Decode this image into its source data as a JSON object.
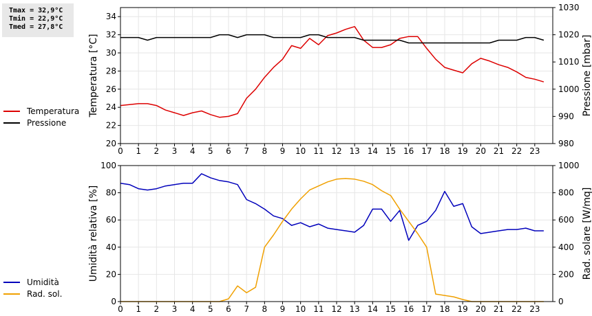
{
  "stats": {
    "tmax": "Tmax = 32,9°C",
    "tmin": "Tmin = 22,9°C",
    "tmed": "Tmed = 27,8°C"
  },
  "colors": {
    "temperature": "#dd0000",
    "pressure": "#000000",
    "humidity": "#0000bb",
    "radiation": "#f0a000",
    "grid": "#e6e6e6"
  },
  "legend_top": [
    {
      "label": "Temperatura",
      "color": "#dd0000"
    },
    {
      "label": "Pressione",
      "color": "#000000"
    }
  ],
  "legend_bottom": [
    {
      "label": "Umidità",
      "color": "#0000bb"
    },
    {
      "label": "Rad. sol.",
      "color": "#f0a000"
    }
  ],
  "chart_data": [
    {
      "type": "line",
      "title": "",
      "xlabel": "",
      "ylabel": "Temperatura [°C]",
      "y2label": "Pressione [mbar]",
      "xlim": [
        0,
        24
      ],
      "ylim": [
        20,
        35
      ],
      "y2lim": [
        980,
        1030
      ],
      "xticks": [
        "0",
        "1",
        "2",
        "3",
        "4",
        "5",
        "6",
        "7",
        "8",
        "9",
        "10",
        "11",
        "12",
        "13",
        "14",
        "15",
        "16",
        "17",
        "18",
        "19",
        "20",
        "21",
        "22",
        "23"
      ],
      "yticks": [
        "20",
        "22",
        "24",
        "26",
        "28",
        "30",
        "32",
        "34"
      ],
      "y2ticks": [
        "980",
        "990",
        "1000",
        "1010",
        "1020",
        "1030"
      ],
      "grid": true,
      "legend": "left",
      "series": [
        {
          "name": "Temperatura",
          "axis": "left",
          "color": "#dd0000",
          "x": [
            0,
            0.5,
            1,
            1.5,
            2,
            2.5,
            3,
            3.5,
            4,
            4.5,
            5,
            5.5,
            6,
            6.5,
            7,
            7.5,
            8,
            8.5,
            9,
            9.5,
            10,
            10.5,
            11,
            11.5,
            12,
            12.5,
            13,
            13.5,
            14,
            14.5,
            15,
            15.5,
            16,
            16.5,
            17,
            17.5,
            18,
            18.5,
            19,
            19.5,
            20,
            20.5,
            21,
            21.5,
            22,
            22.5,
            23,
            23.5
          ],
          "y": [
            24.2,
            24.3,
            24.4,
            24.4,
            24.2,
            23.7,
            23.4,
            23.1,
            23.4,
            23.6,
            23.2,
            22.9,
            23.0,
            23.3,
            25.0,
            26.0,
            27.3,
            28.4,
            29.3,
            30.8,
            30.5,
            31.6,
            30.9,
            31.9,
            32.2,
            32.6,
            32.9,
            31.4,
            30.6,
            30.6,
            30.9,
            31.6,
            31.8,
            31.8,
            30.5,
            29.3,
            28.4,
            28.1,
            27.8,
            28.8,
            29.4,
            29.1,
            28.7,
            28.4,
            27.9,
            27.3,
            27.1,
            26.8
          ]
        },
        {
          "name": "Pressione",
          "axis": "right",
          "color": "#000000",
          "x": [
            0,
            0.5,
            1,
            1.5,
            2,
            2.5,
            3,
            3.5,
            4,
            4.5,
            5,
            5.5,
            6,
            6.5,
            7,
            7.5,
            8,
            8.5,
            9,
            9.5,
            10,
            10.5,
            11,
            11.5,
            12,
            12.5,
            13,
            13.5,
            14,
            14.5,
            15,
            15.5,
            16,
            16.5,
            17,
            17.5,
            18,
            18.5,
            19,
            19.5,
            20,
            20.5,
            21,
            21.5,
            22,
            22.5,
            23,
            23.5
          ],
          "y": [
            1019,
            1019,
            1019,
            1018,
            1019,
            1019,
            1019,
            1019,
            1019,
            1019,
            1019,
            1020,
            1020,
            1019,
            1020,
            1020,
            1020,
            1019,
            1019,
            1019,
            1019,
            1020,
            1020,
            1019,
            1019,
            1019,
            1019,
            1018,
            1018,
            1018,
            1018,
            1018,
            1017,
            1017,
            1017,
            1017,
            1017,
            1017,
            1017,
            1017,
            1017,
            1017,
            1018,
            1018,
            1018,
            1019,
            1019,
            1018
          ]
        }
      ]
    },
    {
      "type": "line",
      "title": "",
      "xlabel": "",
      "ylabel": "Umidità relativa [%]",
      "y2label": "Rad. solare [W/mq]",
      "xlim": [
        0,
        24
      ],
      "ylim": [
        0,
        100
      ],
      "y2lim": [
        0,
        1000
      ],
      "xticks": [
        "0",
        "1",
        "2",
        "3",
        "4",
        "5",
        "6",
        "7",
        "8",
        "9",
        "10",
        "11",
        "12",
        "13",
        "14",
        "15",
        "16",
        "17",
        "18",
        "19",
        "20",
        "21",
        "22",
        "23"
      ],
      "yticks": [
        "0",
        "20",
        "40",
        "60",
        "80",
        "100"
      ],
      "y2ticks": [
        "0",
        "200",
        "400",
        "600",
        "800",
        "1000"
      ],
      "grid": true,
      "legend": "left",
      "series": [
        {
          "name": "Umidità",
          "axis": "left",
          "color": "#0000bb",
          "x": [
            0,
            0.5,
            1,
            1.5,
            2,
            2.5,
            3,
            3.5,
            4,
            4.5,
            5,
            5.5,
            6,
            6.5,
            7,
            7.5,
            8,
            8.5,
            9,
            9.5,
            10,
            10.5,
            11,
            11.5,
            12,
            12.5,
            13,
            13.5,
            14,
            14.5,
            15,
            15.5,
            16,
            16.5,
            17,
            17.5,
            18,
            18.5,
            19,
            19.5,
            20,
            20.5,
            21,
            21.5,
            22,
            22.5,
            23,
            23.5
          ],
          "y": [
            87,
            86,
            83,
            82,
            83,
            85,
            86,
            87,
            87,
            94,
            91,
            89,
            88,
            86,
            75,
            72,
            68,
            63,
            61,
            56,
            58,
            55,
            57,
            54,
            53,
            52,
            51,
            56,
            68,
            68,
            59,
            67,
            45,
            56,
            59,
            67,
            81,
            70,
            72,
            55,
            50,
            51,
            52,
            53,
            53,
            54,
            52,
            52
          ]
        },
        {
          "name": "Rad. sol.",
          "axis": "right",
          "color": "#f0a000",
          "x": [
            0,
            0.5,
            1,
            1.5,
            2,
            2.5,
            3,
            3.5,
            4,
            4.5,
            5,
            5.5,
            6,
            6.5,
            7,
            7.5,
            8,
            8.5,
            9,
            9.5,
            10,
            10.5,
            11,
            11.5,
            12,
            12.5,
            13,
            13.5,
            14,
            14.5,
            15,
            15.5,
            16,
            16.5,
            17,
            17.5,
            18,
            18.5,
            19,
            19.5,
            20,
            20.5,
            21,
            21.5,
            22,
            22.5,
            23,
            23.5
          ],
          "y": [
            0,
            0,
            0,
            0,
            0,
            0,
            0,
            0,
            0,
            0,
            0,
            0,
            20,
            115,
            65,
            105,
            400,
            490,
            590,
            680,
            755,
            820,
            850,
            880,
            900,
            905,
            900,
            885,
            860,
            815,
            780,
            680,
            590,
            500,
            400,
            55,
            45,
            35,
            15,
            0,
            0,
            0,
            0,
            0,
            0,
            0,
            0,
            0
          ]
        }
      ]
    }
  ]
}
